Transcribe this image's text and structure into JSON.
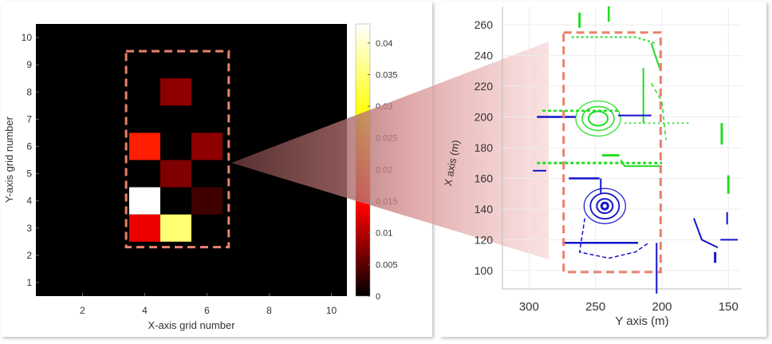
{
  "chart_data": [
    {
      "type": "heatmap",
      "title": "",
      "xlabel": "X-axis grid number",
      "ylabel": "Y-axis grid number",
      "xlim": [
        0.5,
        10.5
      ],
      "ylim": [
        0.5,
        10.5
      ],
      "x_ticks": [
        2,
        4,
        6,
        8,
        10
      ],
      "y_ticks": [
        1,
        2,
        3,
        4,
        5,
        6,
        7,
        8,
        9,
        10
      ],
      "colorbar": {
        "range": [
          0,
          0.043
        ],
        "ticks": [
          0,
          0.005,
          0.01,
          0.015,
          0.02,
          0.025,
          0.03,
          0.035,
          0.04
        ],
        "tick_labels": [
          "0",
          "0.005",
          "0.01",
          "0.015",
          "0.02",
          "0.025",
          "0.03",
          "0.035",
          "0.04"
        ],
        "colormap": "hot"
      },
      "cells": [
        {
          "x": 5,
          "y": 8,
          "value": 0.009
        },
        {
          "x": 4,
          "y": 6,
          "value": 0.018
        },
        {
          "x": 6,
          "y": 6,
          "value": 0.009
        },
        {
          "x": 5,
          "y": 5,
          "value": 0.008
        },
        {
          "x": 4,
          "y": 4,
          "value": 0.043
        },
        {
          "x": 6,
          "y": 4,
          "value": 0.004
        },
        {
          "x": 4,
          "y": 3,
          "value": 0.015
        },
        {
          "x": 5,
          "y": 3,
          "value": 0.037
        }
      ],
      "highlight_region": {
        "x": [
          3.4,
          6.7
        ],
        "y": [
          2.3,
          9.5
        ]
      }
    },
    {
      "type": "scatter",
      "title": "",
      "xlabel": "Y axis (m)",
      "ylabel": "X axis (m)",
      "x_reversed": true,
      "xlim": [
        320,
        140
      ],
      "ylim": [
        88,
        272
      ],
      "x_ticks": [
        300,
        250,
        200,
        150
      ],
      "y_ticks": [
        100,
        120,
        140,
        160,
        180,
        200,
        220,
        240,
        260
      ],
      "colors": {
        "series_a": "#22dd22",
        "series_b": "#1414cc"
      },
      "highlight_region": {
        "x": [
          274,
          201
        ],
        "y": [
          99,
          255
        ]
      }
    }
  ],
  "colors": {
    "highlight_box": "#e8826e",
    "background": "#000000"
  }
}
